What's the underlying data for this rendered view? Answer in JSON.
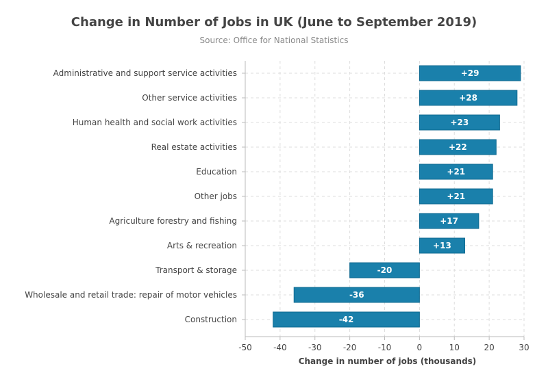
{
  "chart_data": {
    "type": "bar",
    "orientation": "horizontal",
    "title": "Change in Number of Jobs in UK (June to September 2019)",
    "subtitle": "Source: Office for National Statistics",
    "xlabel": "Change in number of jobs (thousands)",
    "ylabel": "",
    "xlim": [
      -50,
      30
    ],
    "xticks": [
      -50,
      -40,
      -30,
      -20,
      -10,
      0,
      10,
      20,
      30
    ],
    "grid": true,
    "bar_color": "#1a80ab",
    "bar_border_color": "#0f6a91",
    "categories": [
      "Administrative and support service activities",
      "Other service activities",
      "Human health and social work activities",
      "Real estate activities",
      "Education",
      "Other jobs",
      "Agriculture forestry and fishing",
      "Arts & recreation",
      "Transport & storage",
      "Wholesale and retail trade: repair of motor vehicles",
      "Construction"
    ],
    "values": [
      29,
      28,
      23,
      22,
      21,
      21,
      17,
      13,
      -20,
      -36,
      -42
    ],
    "data_labels": [
      "+29",
      "+28",
      "+23",
      "+22",
      "+21",
      "+21",
      "+17",
      "+13",
      "-20",
      "-36",
      "-42"
    ]
  }
}
